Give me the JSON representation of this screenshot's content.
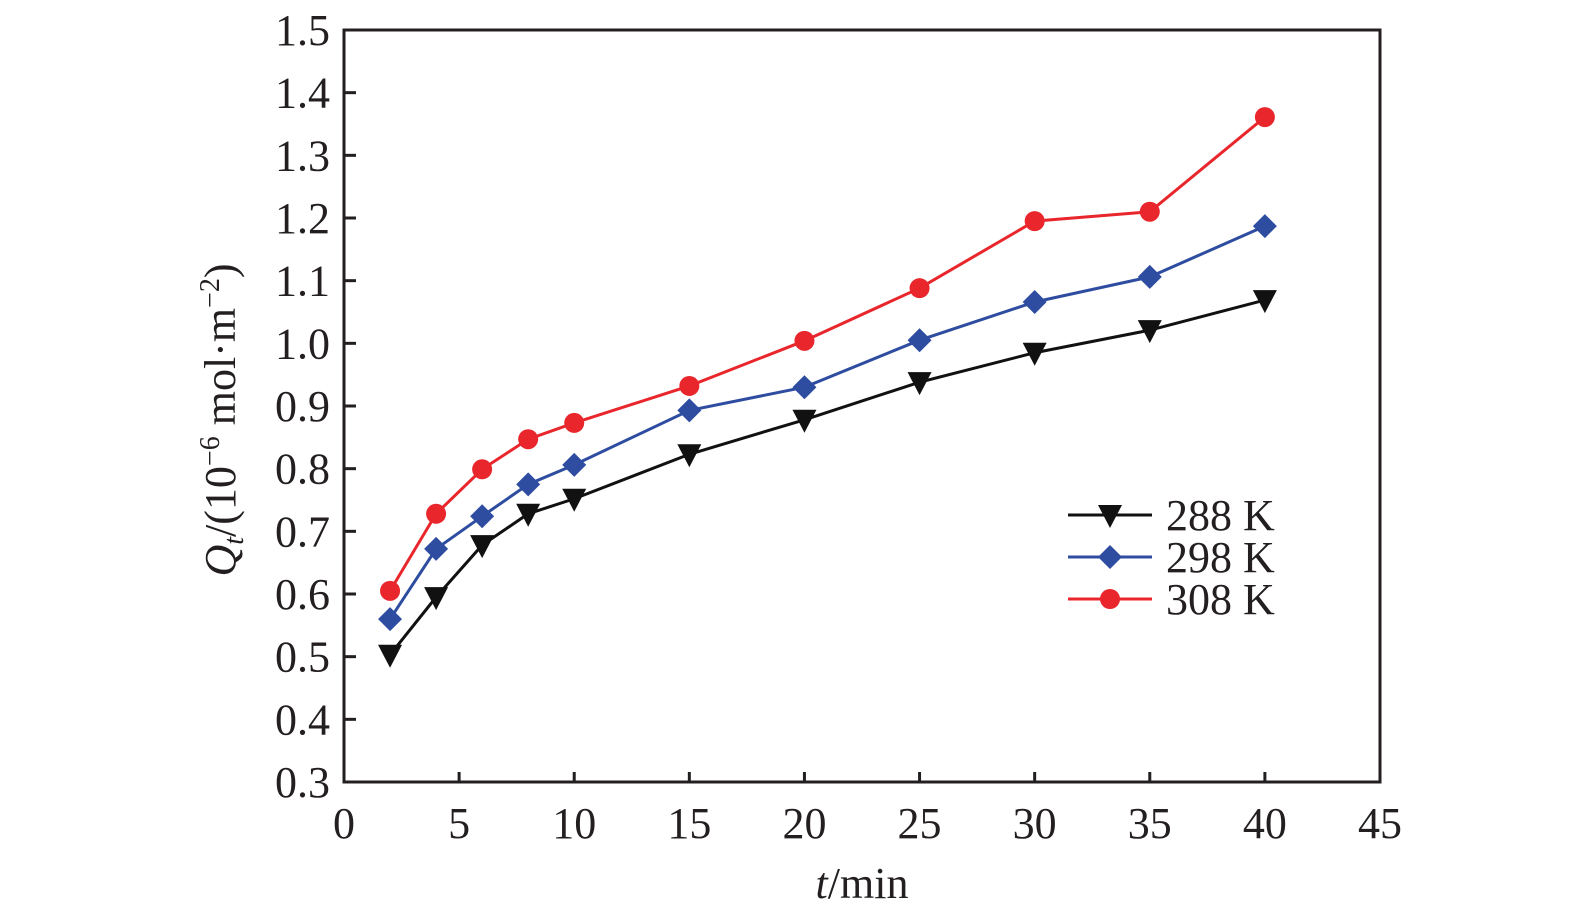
{
  "chart_data": {
    "type": "line",
    "title": "",
    "xlabel": {
      "italic": "t",
      "rest": "/min"
    },
    "ylabel": {
      "italic": "Q",
      "sub": "t",
      "rest1": "/(10",
      "sup1": "−6",
      "rest2": " mol·m",
      "sup2": "−2",
      "rest3": ")"
    },
    "xlim": [
      0,
      45
    ],
    "ylim": [
      0.3,
      1.5
    ],
    "xticks": [
      0,
      5,
      10,
      15,
      20,
      25,
      30,
      35,
      40,
      45
    ],
    "yticks": [
      0.3,
      0.4,
      0.5,
      0.6,
      0.7,
      0.8,
      0.9,
      1.0,
      1.1,
      1.2,
      1.3,
      1.4,
      1.5
    ],
    "ytick_labels": [
      "0.3",
      "0.4",
      "0.5",
      "0.6",
      "0.7",
      "0.8",
      "0.9",
      "1.0",
      "1.1",
      "1.2",
      "1.3",
      "1.4",
      "1.5"
    ],
    "grid": false,
    "legend_position": "center-right",
    "x": [
      2,
      4,
      6,
      8,
      10,
      15,
      20,
      25,
      30,
      35,
      40
    ],
    "series": [
      {
        "name": "288 K",
        "color": "#111111",
        "marker": "triangle-down",
        "values": [
          0.503,
          0.595,
          0.678,
          0.728,
          0.752,
          0.823,
          0.878,
          0.938,
          0.985,
          1.021,
          1.069
        ]
      },
      {
        "name": "298 K",
        "color": "#2e4da0",
        "marker": "diamond",
        "values": [
          0.56,
          0.672,
          0.724,
          0.775,
          0.806,
          0.893,
          0.93,
          1.005,
          1.066,
          1.106,
          1.187
        ]
      },
      {
        "name": "308 K",
        "color": "#e8262c",
        "marker": "circle",
        "values": [
          0.605,
          0.728,
          0.799,
          0.847,
          0.873,
          0.932,
          1.004,
          1.088,
          1.195,
          1.21,
          1.361
        ]
      }
    ]
  }
}
